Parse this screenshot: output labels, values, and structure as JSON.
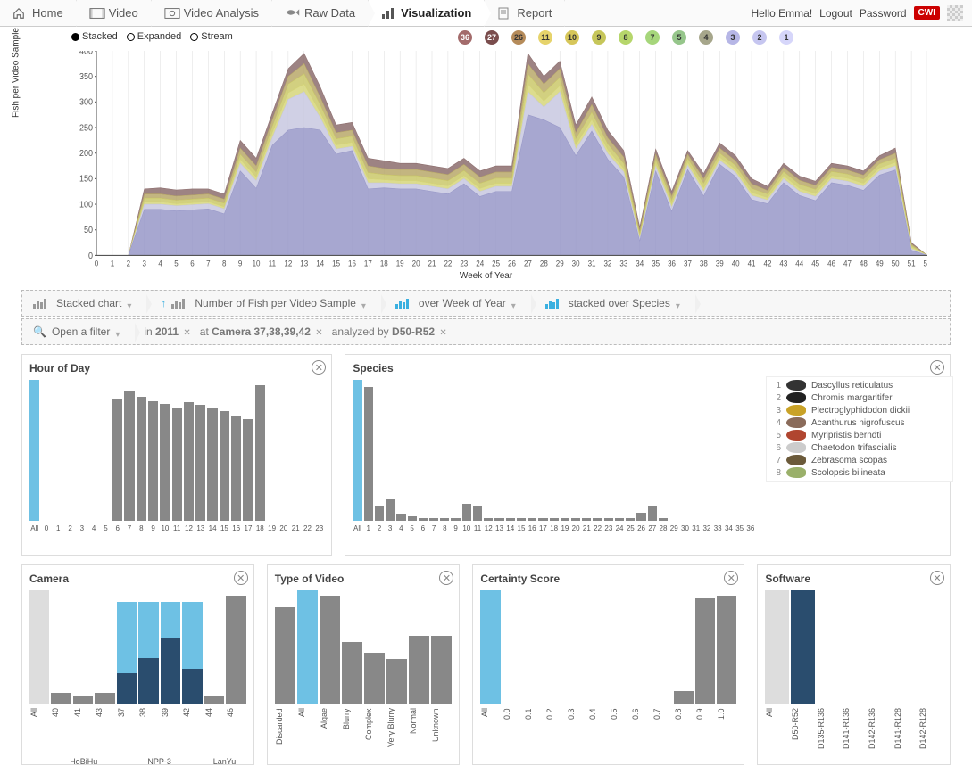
{
  "nav": {
    "items": [
      {
        "label": "Home",
        "icon": "home"
      },
      {
        "label": "Video",
        "icon": "film"
      },
      {
        "label": "Video Analysis",
        "icon": "analysis"
      },
      {
        "label": "Raw Data",
        "icon": "fish"
      },
      {
        "label": "Visualization",
        "icon": "barchart",
        "active": true
      },
      {
        "label": "Report",
        "icon": "report"
      }
    ],
    "greeting": "Hello Emma!",
    "logout": "Logout",
    "password": "Password",
    "brand": "CWI"
  },
  "chart_modes": [
    {
      "label": "Stacked",
      "selected": true
    },
    {
      "label": "Expanded",
      "selected": false
    },
    {
      "label": "Stream",
      "selected": false
    }
  ],
  "number_badges": [
    {
      "n": 36,
      "bg": "#a36b6b",
      "fg": "#fff"
    },
    {
      "n": 27,
      "bg": "#7a4d4d",
      "fg": "#fff"
    },
    {
      "n": 26,
      "bg": "#b58b5a",
      "fg": "#333"
    },
    {
      "n": 11,
      "bg": "#e6d36b",
      "fg": "#333"
    },
    {
      "n": 10,
      "bg": "#d6c65a",
      "fg": "#333"
    },
    {
      "n": 9,
      "bg": "#c6c65a",
      "fg": "#333"
    },
    {
      "n": 8,
      "bg": "#b6d66b",
      "fg": "#333"
    },
    {
      "n": 7,
      "bg": "#a6d67b",
      "fg": "#333"
    },
    {
      "n": 5,
      "bg": "#96c68b",
      "fg": "#333"
    },
    {
      "n": 4,
      "bg": "#a6a68b",
      "fg": "#333"
    },
    {
      "n": 3,
      "bg": "#b6b6e6",
      "fg": "#333"
    },
    {
      "n": 2,
      "bg": "#c6c6f0",
      "fg": "#333"
    },
    {
      "n": 1,
      "bg": "#d6d6fa",
      "fg": "#333"
    }
  ],
  "main_chart": {
    "yaxis_title": "Fish per Video Sample",
    "xaxis_title": "Week of Year",
    "ylim": [
      0,
      400
    ],
    "ytick_step": 50,
    "xlim": [
      0,
      52
    ],
    "series_colors": [
      "#8c6d6d",
      "#b8a86a",
      "#cac86a",
      "#d6d67a",
      "#c8c8e0",
      "#9898c8"
    ],
    "stacked_values": [
      [
        0,
        0,
        0,
        130,
        132,
        128,
        130,
        130,
        120,
        225,
        190,
        278,
        365,
        395,
        330,
        255,
        260,
        190,
        185,
        180,
        180,
        175,
        170,
        190,
        165,
        175,
        175,
        395,
        350,
        380,
        255,
        310,
        245,
        205,
        55,
        208,
        125,
        205,
        160,
        220,
        195,
        150,
        135,
        180,
        155,
        145,
        180,
        175,
        165,
        195,
        210,
        25,
        0
      ],
      [
        0,
        0,
        0,
        120,
        120,
        116,
        118,
        120,
        110,
        210,
        175,
        265,
        350,
        375,
        310,
        240,
        245,
        175,
        170,
        168,
        168,
        163,
        158,
        178,
        153,
        163,
        163,
        375,
        335,
        365,
        240,
        295,
        230,
        192,
        48,
        198,
        116,
        198,
        150,
        210,
        185,
        140,
        127,
        172,
        147,
        137,
        172,
        167,
        157,
        187,
        200,
        22,
        0
      ],
      [
        0,
        0,
        0,
        112,
        112,
        108,
        110,
        112,
        102,
        198,
        163,
        252,
        335,
        355,
        295,
        228,
        233,
        162,
        158,
        156,
        156,
        151,
        146,
        166,
        141,
        151,
        151,
        355,
        318,
        348,
        228,
        280,
        218,
        180,
        42,
        188,
        108,
        190,
        141,
        200,
        176,
        131,
        120,
        164,
        139,
        129,
        164,
        159,
        149,
        179,
        190,
        19,
        0
      ],
      [
        0,
        0,
        0,
        105,
        105,
        101,
        103,
        105,
        95,
        188,
        153,
        240,
        318,
        335,
        280,
        216,
        221,
        150,
        148,
        146,
        146,
        141,
        136,
        156,
        131,
        141,
        141,
        335,
        302,
        332,
        216,
        266,
        207,
        170,
        37,
        180,
        100,
        182,
        132,
        192,
        168,
        123,
        113,
        156,
        131,
        121,
        156,
        151,
        141,
        171,
        182,
        16,
        0
      ],
      [
        0,
        0,
        0,
        100,
        100,
        97,
        99,
        101,
        91,
        180,
        146,
        230,
        305,
        320,
        270,
        208,
        213,
        142,
        142,
        140,
        140,
        135,
        130,
        150,
        125,
        135,
        135,
        320,
        290,
        320,
        208,
        256,
        199,
        163,
        33,
        174,
        94,
        176,
        125,
        186,
        162,
        117,
        108,
        150,
        125,
        115,
        150,
        145,
        135,
        165,
        175,
        13,
        0
      ],
      [
        0,
        0,
        0,
        90,
        90,
        87,
        89,
        91,
        81,
        165,
        131,
        215,
        245,
        250,
        245,
        198,
        205,
        130,
        132,
        130,
        130,
        125,
        120,
        140,
        115,
        125,
        125,
        275,
        265,
        250,
        195,
        243,
        188,
        153,
        28,
        165,
        86,
        168,
        116,
        178,
        154,
        109,
        101,
        142,
        117,
        107,
        142,
        137,
        127,
        157,
        167,
        10,
        0
      ]
    ]
  },
  "controls": {
    "row1": [
      {
        "icon": "grey",
        "label": "Stacked chart",
        "dd": true
      },
      {
        "icon": "arrow",
        "label": "Number of Fish per Video Sample",
        "dd": true
      },
      {
        "icon": "blue",
        "label": "over Week of Year",
        "dd": true
      },
      {
        "icon": "blue",
        "label": "stacked over Species",
        "dd": true
      }
    ],
    "filter_label": "Open a filter",
    "filter_parts": [
      {
        "pre": "in ",
        "bold": "2011",
        "x": true
      },
      {
        "pre": "at ",
        "bold": "Camera 37,38,39,42",
        "x": true
      },
      {
        "pre": "analyzed by ",
        "bold": "D50-R52",
        "x": true
      }
    ]
  },
  "hour_panel": {
    "title": "Hour of Day",
    "labels": [
      "All",
      "0",
      "1",
      "2",
      "3",
      "4",
      "5",
      "6",
      "7",
      "8",
      "9",
      "10",
      "11",
      "12",
      "13",
      "14",
      "15",
      "16",
      "17",
      "18",
      "19",
      "20",
      "21",
      "22",
      "23"
    ],
    "values": [
      100,
      0,
      0,
      0,
      0,
      0,
      0,
      87,
      92,
      88,
      85,
      83,
      80,
      84,
      82,
      80,
      78,
      75,
      72,
      96,
      0,
      0,
      0,
      0,
      0
    ],
    "selected": [
      0
    ]
  },
  "species_panel": {
    "title": "Species",
    "labels": [
      "All",
      "1",
      "2",
      "3",
      "4",
      "5",
      "6",
      "7",
      "8",
      "9",
      "10",
      "11",
      "12",
      "13",
      "14",
      "15",
      "16",
      "17",
      "18",
      "19",
      "20",
      "21",
      "22",
      "23",
      "24",
      "25",
      "26",
      "27",
      "28",
      "29",
      "30",
      "31",
      "32",
      "33",
      "34",
      "35",
      "36"
    ],
    "values": [
      100,
      95,
      10,
      15,
      5,
      3,
      2,
      2,
      2,
      2,
      12,
      10,
      2,
      2,
      2,
      2,
      2,
      2,
      2,
      2,
      2,
      2,
      2,
      2,
      2,
      2,
      6,
      10,
      2,
      0,
      0,
      0,
      0,
      0,
      0,
      0,
      0
    ],
    "selected": [
      0
    ],
    "legend": [
      {
        "n": 1,
        "name": "Dascyllus reticulatus",
        "color": "#333"
      },
      {
        "n": 2,
        "name": "Chromis margaritifer",
        "color": "#222"
      },
      {
        "n": 3,
        "name": "Plectroglyphidodon dickii",
        "color": "#c9a227"
      },
      {
        "n": 4,
        "name": "Acanthurus nigrofuscus",
        "color": "#8a6b5a"
      },
      {
        "n": 5,
        "name": "Myripristis berndti",
        "color": "#b0452f"
      },
      {
        "n": 6,
        "name": "Chaetodon trifascialis",
        "color": "#ccc"
      },
      {
        "n": 7,
        "name": "Zebrasoma scopas",
        "color": "#6b5a3a"
      },
      {
        "n": 8,
        "name": "Scolopsis bilineata",
        "color": "#9ab06a"
      }
    ]
  },
  "camera_panel": {
    "title": "Camera",
    "labels": [
      "All",
      "40",
      "41",
      "43",
      "37",
      "38",
      "39",
      "42",
      "44",
      "46"
    ],
    "values": [
      100,
      10,
      8,
      10,
      90,
      90,
      90,
      90,
      8,
      95
    ],
    "inner": [
      0,
      0,
      0,
      0,
      30,
      45,
      65,
      35,
      0,
      0
    ],
    "selected": [
      4,
      5,
      6,
      7
    ],
    "groups": [
      {
        "label": "",
        "span": 1
      },
      {
        "label": "HoBiHu",
        "span": 3
      },
      {
        "label": "NPP-3",
        "span": 4
      },
      {
        "label": "LanYu",
        "span": 2
      }
    ]
  },
  "video_type_panel": {
    "title": "Type of Video",
    "labels": [
      "Discarded",
      "All",
      "Algae",
      "Blurry",
      "Complex",
      "Very Blurry",
      "Normal",
      "Unknown"
    ],
    "values": [
      85,
      100,
      95,
      55,
      45,
      40,
      60,
      60
    ],
    "selected": [
      1
    ]
  },
  "certainty_panel": {
    "title": "Certainty Score",
    "labels": [
      "All",
      "0.0",
      "0.1",
      "0.2",
      "0.3",
      "0.4",
      "0.5",
      "0.6",
      "0.7",
      "0.8",
      "0.9",
      "1.0"
    ],
    "values": [
      100,
      0,
      0,
      0,
      0,
      0,
      0,
      0,
      0,
      12,
      93,
      95
    ],
    "selected": [
      0
    ]
  },
  "software_panel": {
    "title": "Software",
    "labels": [
      "All",
      "D50-R52",
      "D135-R136",
      "D141-R136",
      "D142-R136",
      "D141-R128",
      "D142-R128"
    ],
    "values": [
      100,
      100,
      0,
      0,
      0,
      0,
      0
    ],
    "inner": [
      0,
      100,
      0,
      0,
      0,
      0,
      0
    ],
    "selected": [
      1
    ]
  }
}
